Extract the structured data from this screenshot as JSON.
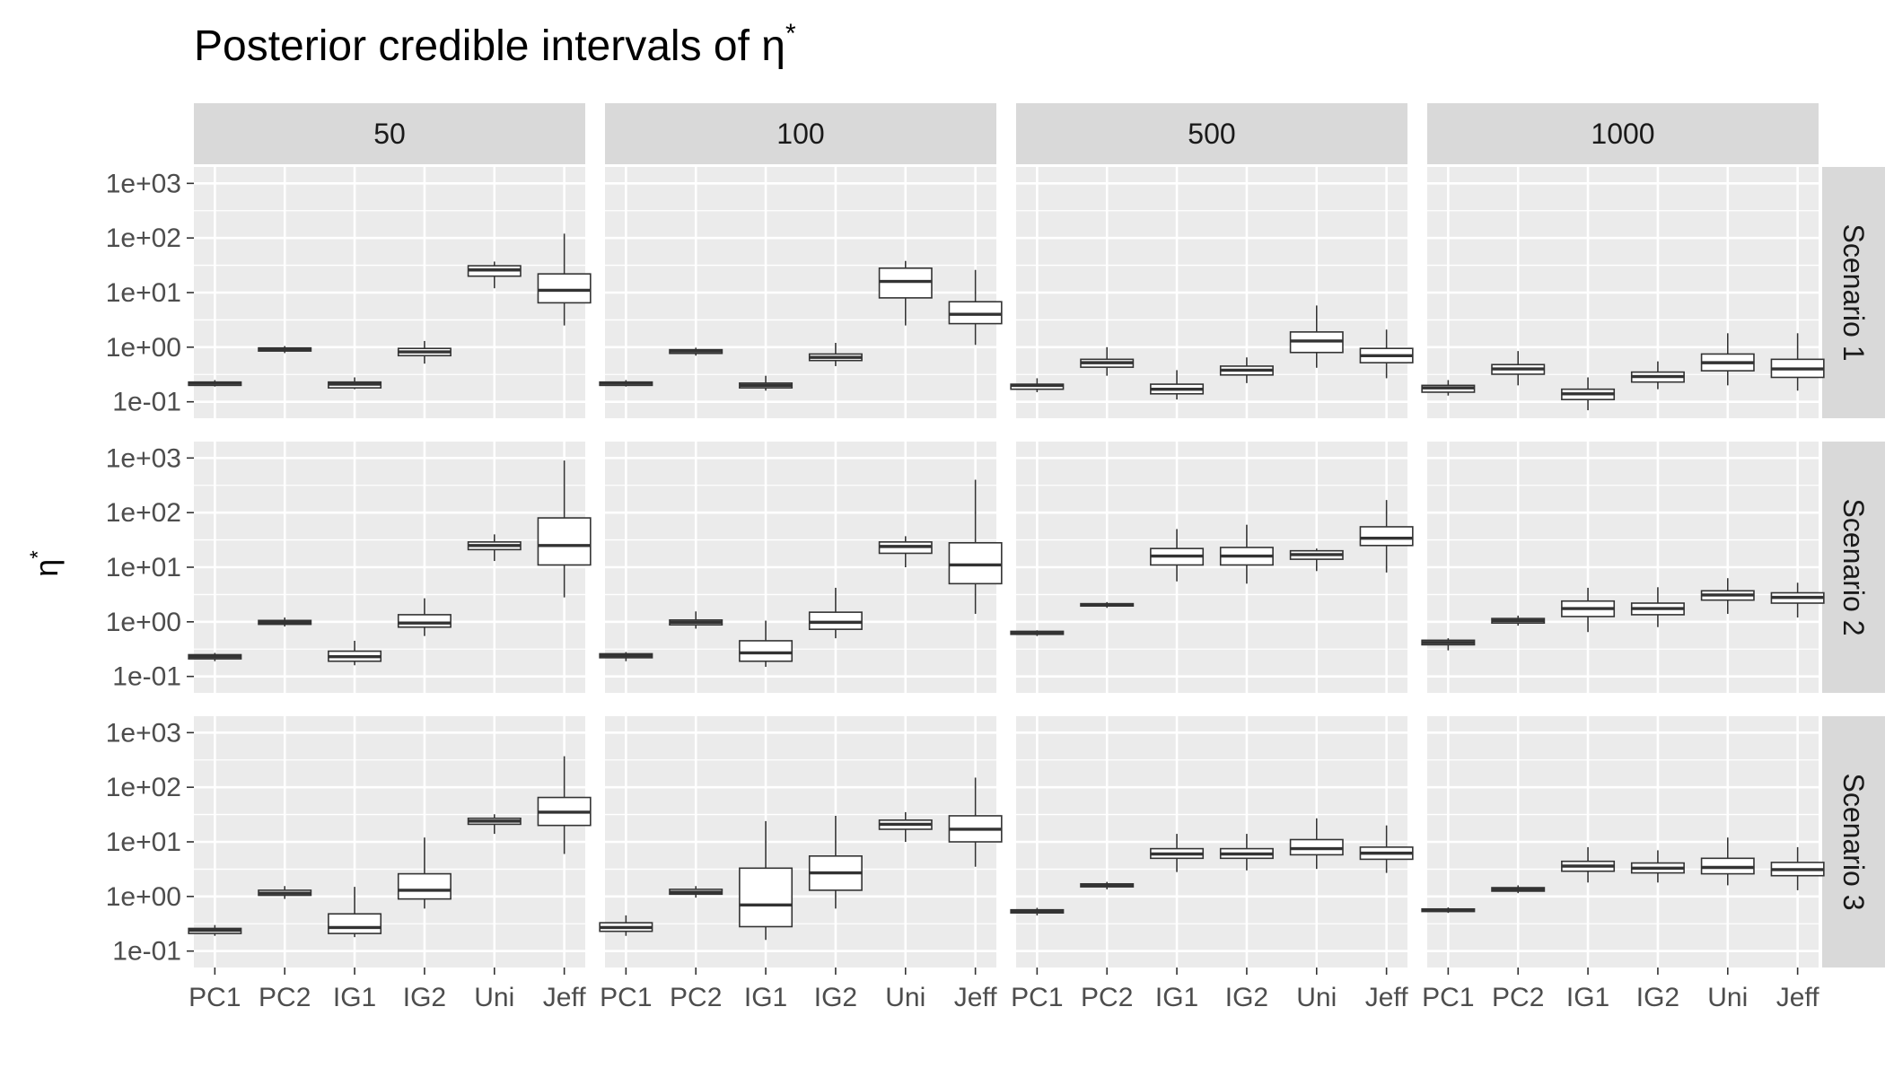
{
  "chart_data": {
    "type": "boxplot",
    "title_text": "Posterior credible intervals of η",
    "title_superscript": "*",
    "ylabel_text": "η",
    "ylabel_superscript": "*",
    "y_scale": "log10",
    "ylim": [
      0.05,
      2000
    ],
    "y_ticks": [
      {
        "value": 0.1,
        "label": "1e-01"
      },
      {
        "value": 1,
        "label": "1e+00"
      },
      {
        "value": 10,
        "label": "1e+01"
      },
      {
        "value": 100,
        "label": "1e+02"
      },
      {
        "value": 1000,
        "label": "1e+03"
      }
    ],
    "categories": [
      "PC1",
      "PC2",
      "IG1",
      "IG2",
      "Uni",
      "Jeff"
    ],
    "facet_columns": [
      "50",
      "100",
      "500",
      "1000"
    ],
    "facet_rows": [
      "Scenario 1",
      "Scenario 2",
      "Scenario 3"
    ],
    "panels": [
      [
        [
          [
            0.19,
            0.2,
            0.22,
            0.23,
            0.25
          ],
          [
            0.78,
            0.85,
            0.92,
            0.97,
            1.05
          ],
          [
            0.17,
            0.18,
            0.21,
            0.23,
            0.28
          ],
          [
            0.5,
            0.7,
            0.82,
            0.95,
            1.3
          ],
          [
            12,
            20,
            26,
            31,
            37
          ],
          [
            2.5,
            6.5,
            11,
            22,
            120
          ]
        ],
        [
          [
            0.19,
            0.2,
            0.22,
            0.23,
            0.25
          ],
          [
            0.7,
            0.77,
            0.85,
            0.9,
            0.98
          ],
          [
            0.16,
            0.18,
            0.2,
            0.22,
            0.3
          ],
          [
            0.45,
            0.57,
            0.65,
            0.75,
            1.2
          ],
          [
            2.5,
            8,
            16,
            28,
            38
          ],
          [
            1.1,
            2.7,
            4,
            6.8,
            26
          ]
        ],
        [
          [
            0.15,
            0.17,
            0.2,
            0.21,
            0.27
          ],
          [
            0.3,
            0.43,
            0.52,
            0.6,
            1.0
          ],
          [
            0.11,
            0.14,
            0.17,
            0.21,
            0.38
          ],
          [
            0.22,
            0.31,
            0.38,
            0.45,
            0.65
          ],
          [
            0.42,
            0.8,
            1.3,
            1.9,
            5.8
          ],
          [
            0.27,
            0.52,
            0.7,
            0.95,
            2.1
          ]
        ],
        [
          [
            0.13,
            0.15,
            0.18,
            0.2,
            0.25
          ],
          [
            0.2,
            0.32,
            0.4,
            0.48,
            0.85
          ],
          [
            0.07,
            0.11,
            0.14,
            0.17,
            0.28
          ],
          [
            0.17,
            0.23,
            0.29,
            0.35,
            0.55
          ],
          [
            0.2,
            0.37,
            0.52,
            0.75,
            1.8
          ],
          [
            0.16,
            0.28,
            0.4,
            0.6,
            1.8
          ]
        ]
      ],
      [
        [
          [
            0.19,
            0.21,
            0.23,
            0.25,
            0.27
          ],
          [
            0.82,
            0.9,
            0.98,
            1.06,
            1.2
          ],
          [
            0.16,
            0.19,
            0.23,
            0.29,
            0.45
          ],
          [
            0.55,
            0.8,
            0.95,
            1.35,
            2.7
          ],
          [
            13,
            21,
            25,
            29,
            40
          ],
          [
            2.8,
            11,
            25,
            80,
            900
          ]
        ],
        [
          [
            0.19,
            0.22,
            0.24,
            0.26,
            0.28
          ],
          [
            0.75,
            0.88,
            0.98,
            1.08,
            1.55
          ],
          [
            0.15,
            0.19,
            0.27,
            0.45,
            1.05
          ],
          [
            0.5,
            0.73,
            0.98,
            1.5,
            4.2
          ],
          [
            10,
            18,
            24,
            29,
            37
          ],
          [
            1.4,
            5,
            11,
            28,
            400
          ]
        ],
        [
          [
            0.55,
            0.59,
            0.63,
            0.67,
            0.7
          ],
          [
            1.8,
            1.95,
            2.05,
            2.15,
            2.3
          ],
          [
            5.5,
            11,
            16,
            22,
            50
          ],
          [
            5,
            11,
            16,
            23,
            60
          ],
          [
            8.5,
            14,
            17,
            20,
            22
          ],
          [
            8,
            25,
            34,
            55,
            170
          ]
        ],
        [
          [
            0.3,
            0.38,
            0.42,
            0.46,
            0.5
          ],
          [
            0.85,
            0.95,
            1.05,
            1.15,
            1.3
          ],
          [
            0.65,
            1.25,
            1.75,
            2.4,
            4.2
          ],
          [
            0.8,
            1.35,
            1.75,
            2.2,
            4.3
          ],
          [
            1.4,
            2.5,
            3.1,
            3.7,
            6.3
          ],
          [
            1.2,
            2.2,
            2.8,
            3.4,
            5.2
          ]
        ]
      ],
      [
        [
          [
            0.19,
            0.21,
            0.24,
            0.26,
            0.3
          ],
          [
            0.9,
            1.05,
            1.15,
            1.3,
            1.55
          ],
          [
            0.18,
            0.21,
            0.27,
            0.48,
            1.5
          ],
          [
            0.6,
            0.9,
            1.3,
            2.6,
            12
          ],
          [
            14,
            21,
            24,
            27,
            32
          ],
          [
            6,
            20,
            35,
            65,
            370
          ]
        ],
        [
          [
            0.19,
            0.23,
            0.27,
            0.33,
            0.45
          ],
          [
            0.95,
            1.1,
            1.2,
            1.35,
            1.55
          ],
          [
            0.16,
            0.28,
            0.7,
            3.3,
            24
          ],
          [
            0.6,
            1.3,
            2.7,
            5.5,
            30
          ],
          [
            10,
            17,
            21,
            25,
            35
          ],
          [
            3.5,
            10,
            17,
            30,
            150
          ]
        ],
        [
          [
            0.45,
            0.5,
            0.54,
            0.57,
            0.62
          ],
          [
            1.35,
            1.5,
            1.6,
            1.7,
            1.85
          ],
          [
            2.8,
            5,
            6,
            7.5,
            14
          ],
          [
            3,
            5,
            6,
            7.5,
            14
          ],
          [
            3.2,
            5.8,
            7.5,
            11,
            27
          ],
          [
            2.7,
            4.8,
            6.2,
            8,
            20
          ]
        ],
        [
          [
            0.5,
            0.53,
            0.56,
            0.59,
            0.63
          ],
          [
            1.15,
            1.25,
            1.35,
            1.45,
            1.6
          ],
          [
            1.8,
            2.9,
            3.6,
            4.4,
            8
          ],
          [
            1.8,
            2.7,
            3.3,
            4.1,
            7
          ],
          [
            1.6,
            2.6,
            3.4,
            5,
            12
          ],
          [
            1.3,
            2.4,
            3.1,
            4.2,
            8
          ]
        ]
      ]
    ]
  }
}
